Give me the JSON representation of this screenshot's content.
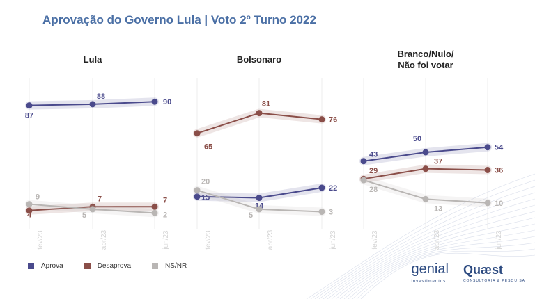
{
  "title": "Aprovação do Governo Lula | Voto 2º Turno 2022",
  "legend": [
    {
      "label": "Aprova",
      "color": "#4a4a8c"
    },
    {
      "label": "Desaprova",
      "color": "#8a4e48"
    },
    {
      "label": "NS/NR",
      "color": "#b9b6b4"
    }
  ],
  "logos": {
    "genial": "genial",
    "genial_sub": "investimentos",
    "quaest": "Quæst",
    "quaest_sub": "CONSULTORIA & PESQUISA"
  },
  "chart_data": {
    "type": "line",
    "categories": [
      "fev/23",
      "abr/23",
      "jun/23"
    ],
    "ylim": [
      0,
      100
    ],
    "panels": [
      {
        "title": "Lula",
        "series": [
          {
            "name": "Aprova",
            "values": [
              87,
              88,
              90
            ]
          },
          {
            "name": "Desaprova",
            "values": [
              4,
              7,
              7
            ]
          },
          {
            "name": "NS/NR",
            "values": [
              9,
              5,
              2
            ]
          }
        ]
      },
      {
        "title": "Bolsonaro",
        "series": [
          {
            "name": "Aprova",
            "values": [
              15,
              14,
              22
            ]
          },
          {
            "name": "Desaprova",
            "values": [
              65,
              81,
              76
            ]
          },
          {
            "name": "NS/NR",
            "values": [
              20,
              5,
              3
            ]
          }
        ]
      },
      {
        "title": "Branco/Nulo/\nNão foi votar",
        "series": [
          {
            "name": "Aprova",
            "values": [
              43,
              50,
              54
            ]
          },
          {
            "name": "Desaprova",
            "values": [
              29,
              37,
              36
            ]
          },
          {
            "name": "NS/NR",
            "values": [
              28,
              13,
              10
            ]
          }
        ]
      }
    ]
  }
}
